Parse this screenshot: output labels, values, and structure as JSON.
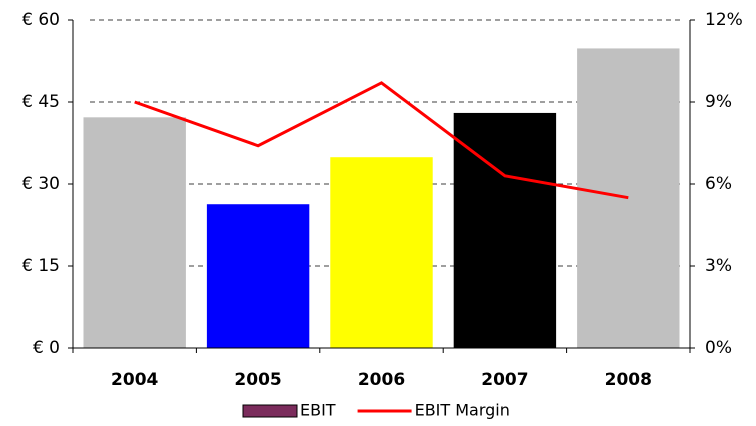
{
  "chart_data": {
    "type": "bar",
    "categories": [
      "2004",
      "2005",
      "2006",
      "2007",
      "2008"
    ],
    "series": [
      {
        "name": "EBIT",
        "type": "bar",
        "color": "#7b2c5c",
        "colors": [
          "#c0c0c0",
          "#0000ff",
          "#ffff00",
          "#000000",
          "#c0c0c0"
        ],
        "values": [
          42.2,
          26.3,
          34.9,
          43.0,
          54.8
        ]
      },
      {
        "name": "EBIT Margin",
        "type": "line",
        "axis": "y2",
        "color": "#ff0000",
        "values": [
          9.0,
          7.4,
          9.7,
          6.3,
          5.5
        ]
      }
    ],
    "ylim": [
      0,
      60
    ],
    "yticks": [
      {
        "value": 0,
        "label": "€ 0"
      },
      {
        "value": 15,
        "label": "€ 15"
      },
      {
        "value": 30,
        "label": "€ 30"
      },
      {
        "value": 45,
        "label": "€ 45"
      },
      {
        "value": 60,
        "label": "€ 60"
      }
    ],
    "y2lim": [
      0,
      12
    ],
    "y2ticks": [
      {
        "value": 0,
        "label": "0%"
      },
      {
        "value": 3,
        "label": "3%"
      },
      {
        "value": 6,
        "label": "6%"
      },
      {
        "value": 9,
        "label": "9%"
      },
      {
        "value": 12,
        "label": "12%"
      }
    ],
    "grid": true,
    "legend": "bottom"
  }
}
